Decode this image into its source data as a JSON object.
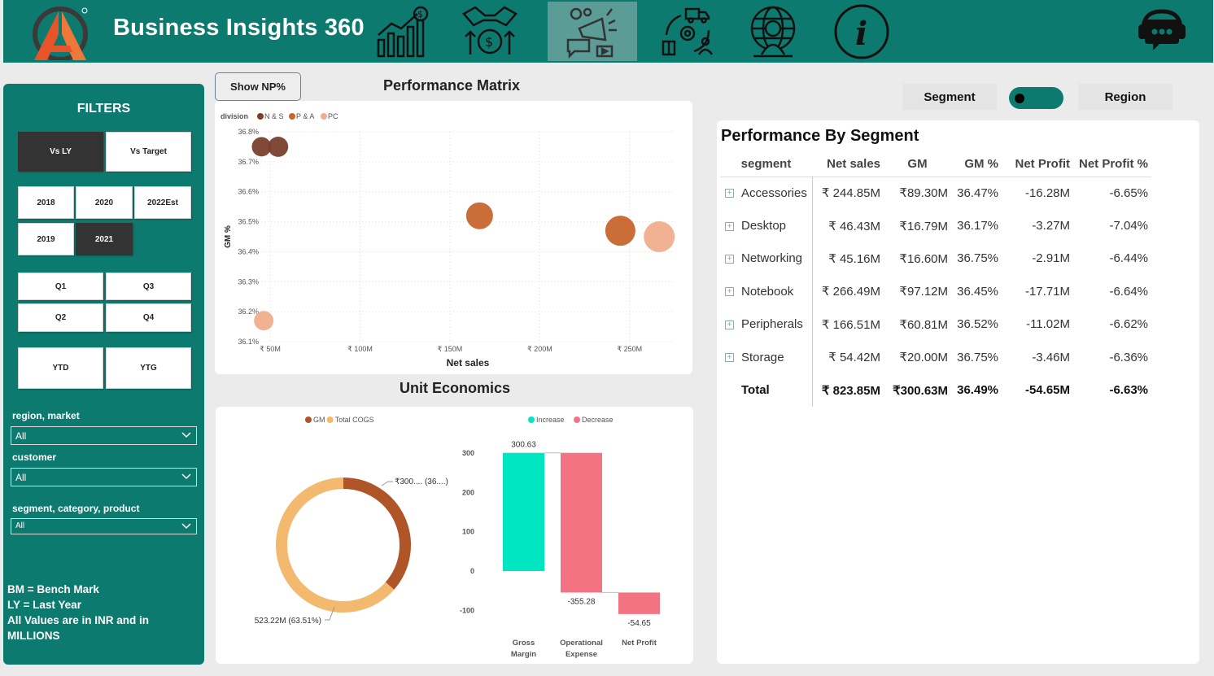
{
  "header": {
    "title": "Business Insights 360",
    "nav": [
      {
        "name": "finance-view-icon"
      },
      {
        "name": "sales-view-icon"
      },
      {
        "name": "marketing-view-icon"
      },
      {
        "name": "supply-chain-view-icon"
      },
      {
        "name": "executive-view-icon"
      },
      {
        "name": "info-icon"
      }
    ],
    "support_icon": "support-chat-icon",
    "accent": "#0d7a6f",
    "active_nav": "#5b9d96"
  },
  "filters": {
    "title": "FILTERS",
    "compare": [
      {
        "label": "Vs LY",
        "selected": true
      },
      {
        "label": "Vs Target",
        "selected": false
      }
    ],
    "years": [
      {
        "label": "2018",
        "selected": false
      },
      {
        "label": "2020",
        "selected": false
      },
      {
        "label": "2022Est",
        "selected": false
      },
      {
        "label": "2019",
        "selected": false
      },
      {
        "label": "2021",
        "selected": true
      }
    ],
    "quarters": [
      {
        "label": "Q1",
        "selected": false
      },
      {
        "label": "Q3",
        "selected": false
      },
      {
        "label": "Q2",
        "selected": false
      },
      {
        "label": "Q4",
        "selected": false
      }
    ],
    "ytd": [
      {
        "label": "YTD",
        "selected": false
      },
      {
        "label": "YTG",
        "selected": false
      }
    ],
    "region_label": "region, market",
    "region_value": "All",
    "customer_label": "customer",
    "customer_value": "All",
    "product_label": "segment, category, product",
    "product_value": "All",
    "notes": [
      "BM = Bench Mark",
      "LY = Last Year",
      "All Values are in INR and in",
      "MILLIONS"
    ]
  },
  "controls": {
    "show_np": "Show NP%",
    "segment": "Segment",
    "region": "Region",
    "toggle_state": "Segment"
  },
  "performance_matrix": {
    "title": "Performance Matrix",
    "legend_title": "division",
    "chart_data": {
      "type": "scatter",
      "xlabel": "Net sales",
      "ylabel": "GM %",
      "x_ticks": [
        "₹ 50M",
        "₹ 100M",
        "₹ 150M",
        "₹ 200M",
        "₹ 250M"
      ],
      "x_tick_values": [
        50,
        100,
        150,
        200,
        250
      ],
      "y_ticks": [
        "36.8%",
        "36.7%",
        "36.6%",
        "36.5%",
        "36.4%",
        "36.3%",
        "36.2%",
        "36.1%"
      ],
      "y_tick_values": [
        36.8,
        36.7,
        36.6,
        36.5,
        36.4,
        36.3,
        36.2,
        36.1
      ],
      "xlim": [
        45,
        275
      ],
      "ylim": [
        36.1,
        36.8
      ],
      "grid": true,
      "legend_position": "top-left",
      "series": [
        {
          "name": "N & S",
          "color": "#7a3f2c",
          "points": [
            {
              "x": 45.16,
              "y": 36.75,
              "size": 45.16
            },
            {
              "x": 54.42,
              "y": 36.75,
              "size": 54.42
            }
          ]
        },
        {
          "name": "P & A",
          "color": "#c8652d",
          "points": [
            {
              "x": 166.51,
              "y": 36.52,
              "size": 166.51
            },
            {
              "x": 244.85,
              "y": 36.47,
              "size": 244.85
            }
          ]
        },
        {
          "name": "PC",
          "color": "#f0ae8e",
          "points": [
            {
              "x": 46.43,
              "y": 36.17,
              "size": 46.43
            },
            {
              "x": 266.49,
              "y": 36.45,
              "size": 266.49
            }
          ]
        }
      ]
    }
  },
  "unit_economics": {
    "title": "Unit Economics",
    "donut": {
      "type": "pie",
      "legend": [
        {
          "name": "GM",
          "color": "#b05528"
        },
        {
          "name": "Total COGS",
          "color": "#f2b96f"
        }
      ],
      "slices": [
        {
          "name": "GM",
          "value": 300.63,
          "percent": 36.49,
          "label": "₹300.... (36....)",
          "color": "#b05528"
        },
        {
          "name": "Total COGS",
          "value": 523.22,
          "percent": 63.51,
          "label": "523.22M (63.51%)",
          "color": "#f2b96f"
        }
      ]
    },
    "waterfall": {
      "type": "bar",
      "legend": [
        {
          "name": "Increase",
          "color": "#00e6c3"
        },
        {
          "name": "Decrease",
          "color": "#f47383"
        }
      ],
      "categories": [
        [
          "Gross",
          "Margin"
        ],
        [
          "Operational",
          "Expense"
        ],
        [
          "Net Profit"
        ]
      ],
      "values": [
        300.63,
        -355.28,
        -54.65
      ],
      "value_labels": [
        "300.63",
        "-355.28",
        "-54.65"
      ],
      "kinds": [
        "Increase",
        "Decrease",
        "Decrease"
      ],
      "y_ticks": [
        "300",
        "200",
        "100",
        "0",
        "-100"
      ],
      "y_tick_values": [
        300,
        200,
        100,
        0,
        -100
      ],
      "ylim": [
        -130,
        320
      ]
    }
  },
  "segment_table": {
    "title": "Performance By Segment",
    "columns": [
      "segment",
      "Net sales",
      "GM",
      "GM %",
      "Net Profit",
      "Net Profit %"
    ],
    "rows": [
      [
        "Accessories",
        "₹ 244.85M",
        "₹89.30M",
        "36.47%",
        "-16.28M",
        "-6.65%"
      ],
      [
        "Desktop",
        "₹ 46.43M",
        "₹16.79M",
        "36.17%",
        "-3.27M",
        "-7.04%"
      ],
      [
        "Networking",
        "₹ 45.16M",
        "₹16.60M",
        "36.75%",
        "-2.91M",
        "-6.44%"
      ],
      [
        "Notebook",
        "₹ 266.49M",
        "₹97.12M",
        "36.45%",
        "-17.71M",
        "-6.64%"
      ],
      [
        "Peripherals",
        "₹ 166.51M",
        "₹60.81M",
        "36.52%",
        "-11.02M",
        "-6.62%"
      ],
      [
        "Storage",
        "₹ 54.42M",
        "₹20.00M",
        "36.75%",
        "-3.46M",
        "-6.36%"
      ]
    ],
    "total": [
      "Total",
      "₹ 823.85M",
      "₹300.63M",
      "36.49%",
      "-54.65M",
      "-6.63%"
    ]
  }
}
